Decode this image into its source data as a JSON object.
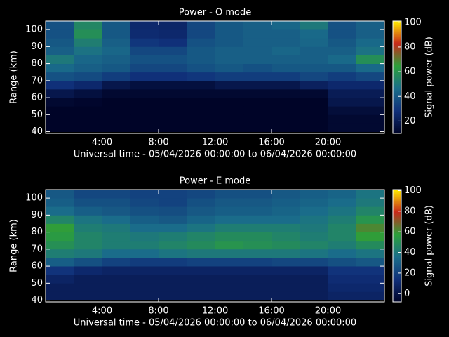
{
  "chart_data": [
    {
      "type": "heatmap",
      "title": "Power - O mode",
      "xlabel": "Universal time - 05/04/2026 00:00:00 to 06/04/2026 00:00:00",
      "ylabel": "Range (km)",
      "colorbar_label": "Signal power (dB)",
      "x_bins": [
        0,
        2,
        4,
        6,
        8,
        10,
        12,
        14,
        16,
        18,
        20,
        22,
        24
      ],
      "y_bins": [
        40,
        45,
        50,
        55,
        60,
        65,
        70,
        75,
        80,
        85,
        90,
        95,
        100,
        105
      ],
      "z": [
        [
          10,
          10,
          10,
          10,
          10,
          10,
          10,
          10,
          10,
          10,
          12,
          12
        ],
        [
          10,
          10,
          10,
          10,
          10,
          10,
          10,
          10,
          10,
          10,
          12,
          12
        ],
        [
          10,
          10,
          10,
          10,
          10,
          10,
          10,
          10,
          10,
          10,
          14,
          14
        ],
        [
          12,
          11,
          10,
          10,
          10,
          10,
          10,
          10,
          10,
          10,
          18,
          18
        ],
        [
          18,
          15,
          12,
          12,
          12,
          12,
          12,
          12,
          12,
          12,
          20,
          20
        ],
        [
          28,
          25,
          18,
          15,
          15,
          15,
          18,
          18,
          18,
          22,
          25,
          25
        ],
        [
          38,
          36,
          32,
          28,
          28,
          30,
          32,
          32,
          32,
          35,
          32,
          35
        ],
        [
          45,
          42,
          40,
          35,
          35,
          38,
          40,
          38,
          40,
          40,
          40,
          45
        ],
        [
          50,
          44,
          42,
          38,
          38,
          40,
          42,
          42,
          42,
          42,
          45,
          58
        ],
        [
          42,
          48,
          44,
          35,
          35,
          40,
          42,
          42,
          44,
          42,
          42,
          48
        ],
        [
          40,
          52,
          42,
          30,
          28,
          38,
          40,
          42,
          42,
          44,
          40,
          45
        ],
        [
          38,
          58,
          40,
          26,
          25,
          35,
          40,
          42,
          42,
          45,
          38,
          42
        ],
        [
          38,
          55,
          40,
          25,
          24,
          35,
          40,
          42,
          44,
          50,
          38,
          42
        ]
      ],
      "xlim": [
        0,
        24
      ],
      "xticks": [
        {
          "value": 4,
          "label": "4:00"
        },
        {
          "value": 8,
          "label": "8:00"
        },
        {
          "value": 12,
          "label": "12:00"
        },
        {
          "value": 16,
          "label": "16:00"
        },
        {
          "value": 20,
          "label": "20:00"
        }
      ],
      "ylim": [
        39,
        105
      ],
      "yticks": [
        40,
        50,
        60,
        70,
        80,
        90,
        100
      ],
      "zlim": [
        10,
        101
      ],
      "zticks": [
        20,
        40,
        60,
        80,
        100
      ],
      "colorscale": [
        "#000428",
        "#10307a",
        "#1a6e8a",
        "#2ca03a",
        "#c8281a",
        "#ffee00"
      ]
    },
    {
      "type": "heatmap",
      "title": "Power - E mode",
      "xlabel": "Universal time - 05/04/2026 00:00:00 to 06/04/2026 00:00:00",
      "ylabel": "Range (km)",
      "colorbar_label": "Signal power (dB)",
      "x_bins": [
        0,
        2,
        4,
        6,
        8,
        10,
        12,
        14,
        16,
        18,
        20,
        22,
        24
      ],
      "y_bins": [
        40,
        45,
        50,
        55,
        60,
        65,
        70,
        75,
        80,
        85,
        90,
        95,
        100,
        105
      ],
      "z": [
        [
          5,
          5,
          5,
          5,
          5,
          5,
          5,
          5,
          5,
          5,
          8,
          8
        ],
        [
          5,
          5,
          5,
          5,
          5,
          5,
          5,
          5,
          5,
          5,
          10,
          10
        ],
        [
          8,
          5,
          5,
          5,
          5,
          5,
          5,
          5,
          5,
          5,
          12,
          12
        ],
        [
          15,
          10,
          8,
          8,
          8,
          8,
          8,
          8,
          8,
          8,
          15,
          15
        ],
        [
          30,
          25,
          20,
          18,
          18,
          20,
          20,
          20,
          22,
          22,
          25,
          28
        ],
        [
          42,
          40,
          35,
          35,
          38,
          40,
          40,
          40,
          40,
          38,
          35,
          38
        ],
        [
          50,
          45,
          42,
          42,
          45,
          48,
          52,
          50,
          48,
          45,
          42,
          48
        ],
        [
          55,
          45,
          42,
          40,
          42,
          45,
          48,
          48,
          45,
          42,
          45,
          58
        ],
        [
          58,
          42,
          40,
          35,
          35,
          38,
          42,
          42,
          42,
          40,
          45,
          62
        ],
        [
          45,
          38,
          35,
          30,
          28,
          32,
          35,
          35,
          35,
          38,
          42,
          52
        ],
        [
          35,
          30,
          28,
          25,
          24,
          28,
          30,
          30,
          32,
          35,
          38,
          45
        ],
        [
          30,
          25,
          25,
          22,
          20,
          25,
          28,
          28,
          30,
          32,
          35,
          40
        ],
        [
          28,
          22,
          22,
          20,
          20,
          22,
          25,
          25,
          28,
          30,
          32,
          38
        ]
      ],
      "xlim": [
        0,
        24
      ],
      "xticks": [
        {
          "value": 4,
          "label": "4:00"
        },
        {
          "value": 8,
          "label": "8:00"
        },
        {
          "value": 12,
          "label": "12:00"
        },
        {
          "value": 16,
          "label": "16:00"
        },
        {
          "value": 20,
          "label": "20:00"
        }
      ],
      "ylim": [
        39,
        105
      ],
      "yticks": [
        40,
        50,
        60,
        70,
        80,
        90,
        100
      ],
      "zlim": [
        -8,
        101
      ],
      "zticks": [
        0,
        20,
        40,
        60,
        80,
        100
      ],
      "colorscale": [
        "#000428",
        "#10307a",
        "#1a6e8a",
        "#2ca03a",
        "#c8281a",
        "#ffee00"
      ]
    }
  ]
}
